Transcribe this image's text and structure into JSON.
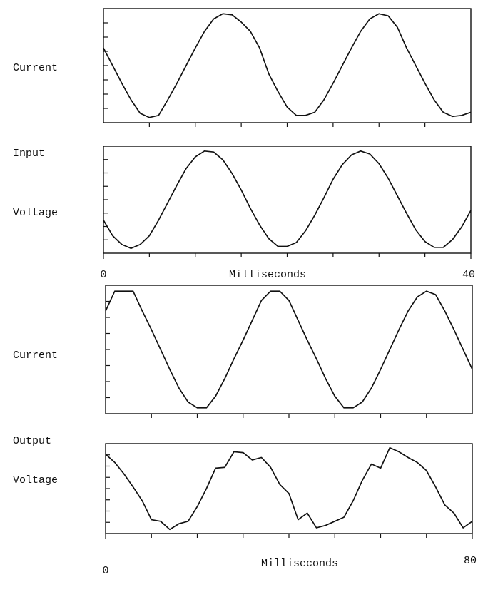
{
  "chart_data": [
    {
      "type": "line",
      "ylabel": [
        "Current"
      ],
      "color": "#111111",
      "x": [
        0,
        1,
        2,
        3,
        4,
        5,
        6,
        7,
        8,
        9,
        10,
        11,
        12,
        13,
        14,
        15,
        16,
        17,
        18,
        19,
        20,
        21,
        22,
        23,
        24,
        25,
        26,
        27,
        28,
        29,
        30,
        31,
        32,
        33,
        34,
        35,
        36,
        37,
        38,
        39,
        40
      ],
      "values": [
        0.67,
        0.5,
        0.33,
        0.17,
        0.04,
        0,
        0.02,
        0.17,
        0.33,
        0.5,
        0.67,
        0.83,
        0.95,
        1,
        0.99,
        0.92,
        0.83,
        0.67,
        0.42,
        0.25,
        0.1,
        0.02,
        0.02,
        0.05,
        0.17,
        0.33,
        0.5,
        0.67,
        0.83,
        0.95,
        1,
        0.98,
        0.87,
        0.67,
        0.5,
        0.33,
        0.17,
        0.05,
        0.01,
        0.02,
        0.05
      ],
      "xlim": [
        0,
        40
      ],
      "ylim": [
        -0.05,
        1.05
      ]
    },
    {
      "type": "line",
      "ylabel": [
        "Input",
        "Voltage"
      ],
      "color": "#111111",
      "xlabel": "Milliseconds",
      "x": [
        0,
        1,
        2,
        3,
        4,
        5,
        6,
        7,
        8,
        9,
        10,
        11,
        12,
        13,
        14,
        15,
        16,
        17,
        18,
        19,
        20,
        21,
        22,
        23,
        24,
        25,
        26,
        27,
        28,
        29,
        30,
        31,
        32,
        33,
        34,
        35,
        36,
        37,
        38,
        39,
        40
      ],
      "values": [
        0.29,
        0.13,
        0.04,
        0,
        0.04,
        0.13,
        0.29,
        0.47,
        0.65,
        0.82,
        0.94,
        1,
        0.99,
        0.91,
        0.77,
        0.6,
        0.41,
        0.24,
        0.1,
        0.02,
        0.02,
        0.06,
        0.18,
        0.34,
        0.52,
        0.71,
        0.86,
        0.96,
        1,
        0.97,
        0.87,
        0.72,
        0.54,
        0.36,
        0.19,
        0.07,
        0.01,
        0.01,
        0.09,
        0.22,
        0.39
      ],
      "xlim": [
        0,
        40
      ],
      "ylim": [
        -0.05,
        1.05
      ],
      "xticks": [
        0,
        40
      ]
    },
    {
      "type": "line",
      "ylabel": [
        "Current"
      ],
      "color": "#111111",
      "x": [
        0,
        2,
        4,
        6,
        8,
        10,
        12,
        14,
        16,
        18,
        20,
        22,
        24,
        26,
        28,
        30,
        32,
        34,
        36,
        38,
        40,
        42,
        44,
        46,
        48,
        50,
        52,
        54,
        56,
        58,
        60,
        62,
        64,
        66,
        68,
        70,
        72,
        74,
        76,
        78,
        80
      ],
      "values": [
        0.83,
        1,
        1,
        1,
        0.83,
        0.67,
        0.5,
        0.33,
        0.17,
        0.05,
        0,
        0,
        0.1,
        0.25,
        0.42,
        0.58,
        0.75,
        0.92,
        1,
        1,
        0.92,
        0.75,
        0.58,
        0.42,
        0.25,
        0.1,
        0,
        0,
        0.05,
        0.17,
        0.33,
        0.5,
        0.67,
        0.83,
        0.95,
        1,
        0.97,
        0.83,
        0.67,
        0.5,
        0.33
      ],
      "xlim": [
        0,
        80
      ],
      "ylim": [
        -0.05,
        1.05
      ]
    },
    {
      "type": "line",
      "ylabel": [
        "Output",
        "Voltage"
      ],
      "color": "#111111",
      "xlabel": "Milliseconds",
      "x": [
        0,
        2,
        4,
        6,
        8,
        10,
        12,
        14,
        16,
        18,
        20,
        22,
        24,
        26,
        28,
        30,
        32,
        34,
        36,
        38,
        40,
        42,
        44,
        46,
        48,
        50,
        52,
        54,
        56,
        58,
        60,
        62,
        64,
        66,
        68,
        70,
        72,
        74,
        76,
        78,
        80
      ],
      "values": [
        0.92,
        0.82,
        0.68,
        0.52,
        0.35,
        0.12,
        0.1,
        0,
        0.07,
        0.1,
        0.28,
        0.5,
        0.75,
        0.76,
        0.95,
        0.94,
        0.85,
        0.88,
        0.76,
        0.55,
        0.44,
        0.12,
        0.2,
        0.02,
        0.05,
        0.1,
        0.15,
        0.35,
        0.6,
        0.8,
        0.75,
        1,
        0.95,
        0.88,
        0.82,
        0.72,
        0.52,
        0.3,
        0.2,
        0.02,
        0.1
      ],
      "xlim": [
        0,
        80
      ],
      "ylim": [
        -0.05,
        1.05
      ],
      "xticks": [
        0,
        80
      ]
    }
  ]
}
